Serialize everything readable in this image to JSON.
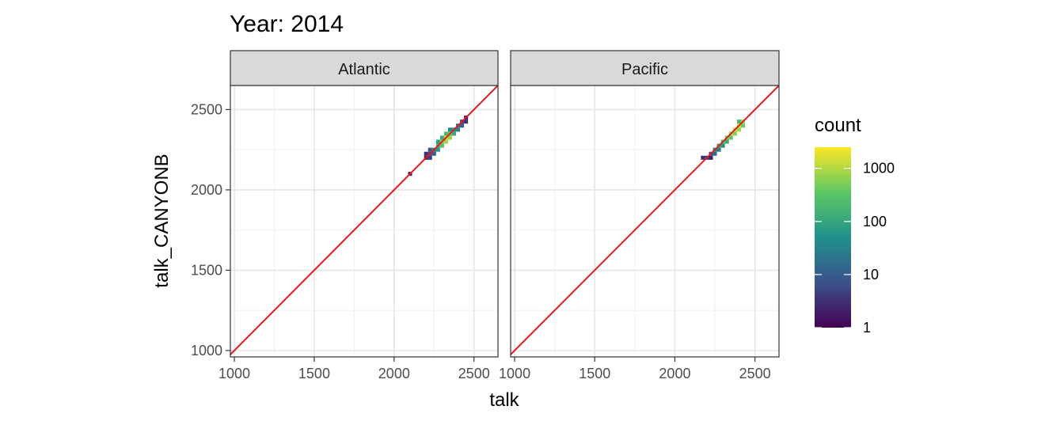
{
  "chart_data": {
    "type": "heatmap",
    "title": "Year: 2014",
    "xlabel": "talk",
    "ylabel": "talk_CANYONB",
    "xlim": [
      975,
      2650
    ],
    "ylim": [
      960,
      2650
    ],
    "x_ticks": [
      1000,
      1500,
      2000,
      2500
    ],
    "y_ticks": [
      1000,
      1500,
      2000,
      2500
    ],
    "grid": true,
    "reference_line": {
      "slope": 1,
      "intercept": 0,
      "color": "#e31a1c"
    },
    "legend": {
      "title": "count",
      "scale": "log10",
      "breaks": [
        1,
        10,
        100,
        1000
      ],
      "range": [
        1,
        2500
      ],
      "placement": "right",
      "colors": [
        "#440154",
        "#3b528b",
        "#21908c",
        "#5dc863",
        "#fde725"
      ]
    },
    "bin_size": 25,
    "facets": [
      {
        "name": "Atlantic",
        "bins": [
          [
            2100,
            2100,
            2
          ],
          [
            2200,
            2225,
            3
          ],
          [
            2225,
            2225,
            5
          ],
          [
            2225,
            2200,
            4
          ],
          [
            2200,
            2200,
            2
          ],
          [
            2250,
            2225,
            10
          ],
          [
            2250,
            2250,
            25
          ],
          [
            2275,
            2250,
            60
          ],
          [
            2225,
            2250,
            8
          ],
          [
            2275,
            2275,
            150
          ],
          [
            2300,
            2275,
            300
          ],
          [
            2300,
            2300,
            600
          ],
          [
            2275,
            2300,
            80
          ],
          [
            2325,
            2300,
            800
          ],
          [
            2325,
            2325,
            1500
          ],
          [
            2350,
            2325,
            700
          ],
          [
            2300,
            2325,
            120
          ],
          [
            2350,
            2350,
            400
          ],
          [
            2375,
            2350,
            100
          ],
          [
            2325,
            2350,
            200
          ],
          [
            2375,
            2375,
            60
          ],
          [
            2400,
            2375,
            30
          ],
          [
            2350,
            2375,
            40
          ],
          [
            2400,
            2400,
            20
          ],
          [
            2425,
            2400,
            8
          ],
          [
            2425,
            2425,
            5
          ],
          [
            2450,
            2425,
            3
          ],
          [
            2450,
            2450,
            2
          ]
        ]
      },
      {
        "name": "Pacific",
        "bins": [
          [
            2175,
            2200,
            3
          ],
          [
            2200,
            2200,
            4
          ],
          [
            2225,
            2200,
            2
          ],
          [
            2225,
            2225,
            8
          ],
          [
            2250,
            2225,
            15
          ],
          [
            2250,
            2250,
            40
          ],
          [
            2275,
            2250,
            30
          ],
          [
            2275,
            2275,
            100
          ],
          [
            2300,
            2275,
            60
          ],
          [
            2300,
            2300,
            250
          ],
          [
            2325,
            2300,
            120
          ],
          [
            2325,
            2325,
            500
          ],
          [
            2350,
            2325,
            300
          ],
          [
            2350,
            2350,
            900
          ],
          [
            2375,
            2350,
            600
          ],
          [
            2375,
            2375,
            1200
          ],
          [
            2400,
            2375,
            700
          ],
          [
            2400,
            2400,
            1500
          ],
          [
            2425,
            2400,
            400
          ],
          [
            2425,
            2425,
            800
          ],
          [
            2400,
            2425,
            200
          ]
        ]
      }
    ]
  }
}
